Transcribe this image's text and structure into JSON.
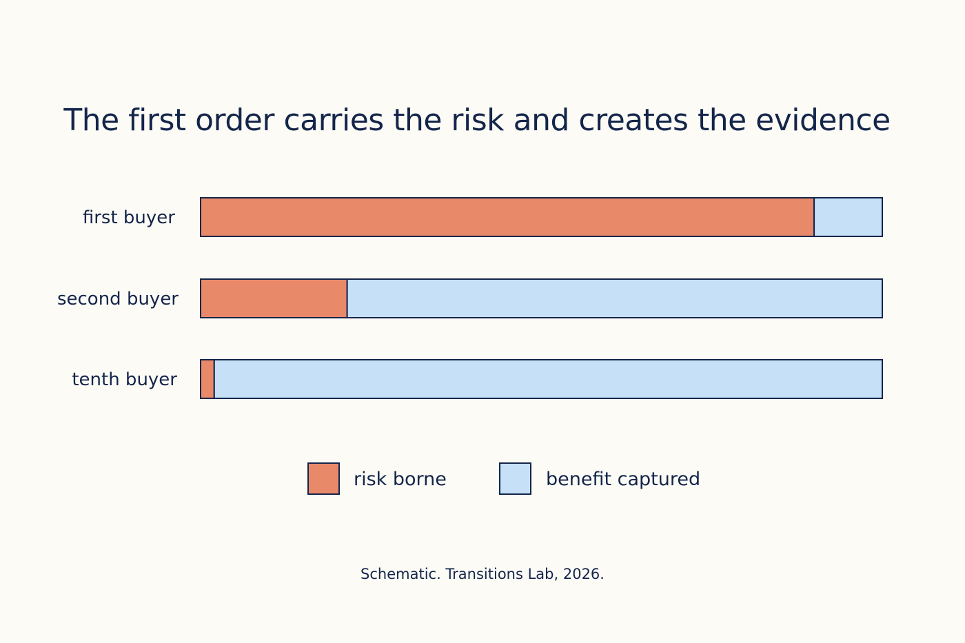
{
  "chart_data": {
    "type": "bar",
    "orientation": "horizontal",
    "stacked": true,
    "title": "The first order carries the risk and creates the evidence",
    "categories": [
      "first buyer",
      "second buyer",
      "tenth buyer"
    ],
    "series": [
      {
        "name": "risk borne",
        "color": "#e8896a",
        "values": [
          90,
          21.5,
          2
        ]
      },
      {
        "name": "benefit captured",
        "color": "#c5e0f7",
        "values": [
          10,
          78.5,
          98
        ]
      }
    ],
    "xlim": [
      0,
      100
    ],
    "grid": false,
    "legend_position": "bottom-center",
    "axes_shown": false,
    "outline_color": "#14254a",
    "note": "Schematic. Transitions Lab, 2026."
  }
}
